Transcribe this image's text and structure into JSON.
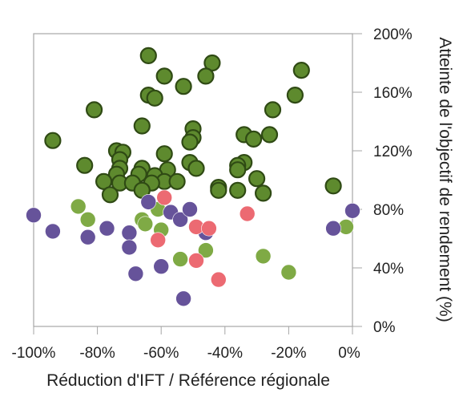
{
  "chart_data": {
    "type": "scatter",
    "xlabel": "Réduction d'IFT / Référence régionale",
    "ylabel": "Atteinte de l'objectif de rendement (%)",
    "xlim": [
      -100,
      0
    ],
    "ylim": [
      0,
      200
    ],
    "x_ticks": [
      "-100%",
      "-80%",
      "-60%",
      "-40%",
      "-20%",
      "0%"
    ],
    "y_ticks": [
      "0%",
      "40%",
      "80%",
      "120%",
      "160%",
      "200%"
    ],
    "grid": false,
    "colors": {
      "dark_green": "#5E8A2E",
      "light_green": "#7FAA45",
      "purple": "#66539A",
      "red": "#EC6A72"
    },
    "series": [
      {
        "color_key": "dark_green",
        "points": [
          [
            -64,
            185
          ],
          [
            -59,
            171
          ],
          [
            -53,
            164
          ],
          [
            -44,
            180
          ],
          [
            -46,
            171
          ],
          [
            -16,
            175
          ],
          [
            -18,
            158
          ],
          [
            -64,
            158
          ],
          [
            -62,
            156
          ],
          [
            -81,
            148
          ],
          [
            -25,
            148
          ],
          [
            -66,
            137
          ],
          [
            -94,
            127
          ],
          [
            -50,
            135
          ],
          [
            -50,
            129
          ],
          [
            -51,
            126
          ],
          [
            -34,
            131
          ],
          [
            -26,
            131
          ],
          [
            -31,
            128
          ],
          [
            -74,
            120
          ],
          [
            -72,
            119
          ],
          [
            -59,
            118
          ],
          [
            -73,
            114
          ],
          [
            -51,
            112
          ],
          [
            -34,
            112
          ],
          [
            -84,
            110
          ],
          [
            -73,
            108
          ],
          [
            -66,
            108
          ],
          [
            -49,
            108
          ],
          [
            -58,
            107
          ],
          [
            -36,
            110
          ],
          [
            -36,
            107
          ],
          [
            -74,
            104
          ],
          [
            -67,
            104
          ],
          [
            -62,
            103
          ],
          [
            -30,
            101
          ],
          [
            -78,
            99
          ],
          [
            -73,
            98
          ],
          [
            -69,
            98
          ],
          [
            -59,
            99
          ],
          [
            -63,
            98
          ],
          [
            -55,
            99
          ],
          [
            -42,
            95
          ],
          [
            -42,
            93
          ],
          [
            -76,
            90
          ],
          [
            -66,
            93
          ],
          [
            -36,
            93
          ],
          [
            -28,
            91
          ],
          [
            -6,
            96
          ]
        ]
      },
      {
        "color_key": "light_green",
        "points": [
          [
            -86,
            82
          ],
          [
            -83,
            73
          ],
          [
            -66,
            73
          ],
          [
            -65,
            70
          ],
          [
            -61,
            80
          ],
          [
            -60,
            66
          ],
          [
            -54,
            46
          ],
          [
            -46,
            52
          ],
          [
            -28,
            48
          ],
          [
            -20,
            37
          ],
          [
            -2,
            68
          ]
        ]
      },
      {
        "color_key": "purple",
        "points": [
          [
            -100,
            76
          ],
          [
            -94,
            65
          ],
          [
            -83,
            61
          ],
          [
            -77,
            67
          ],
          [
            -70,
            64
          ],
          [
            -70,
            54
          ],
          [
            -68,
            36
          ],
          [
            -64,
            85
          ],
          [
            -60,
            41
          ],
          [
            -57,
            78
          ],
          [
            -54,
            73
          ],
          [
            -53,
            19
          ],
          [
            -51,
            80
          ],
          [
            -46,
            64
          ],
          [
            -6,
            67
          ],
          [
            0,
            79
          ]
        ]
      },
      {
        "color_key": "red",
        "points": [
          [
            -59,
            88
          ],
          [
            -61,
            59
          ],
          [
            -49,
            68
          ],
          [
            -45,
            67
          ],
          [
            -49,
            45
          ],
          [
            -42,
            32
          ],
          [
            -33,
            77
          ]
        ]
      }
    ]
  }
}
